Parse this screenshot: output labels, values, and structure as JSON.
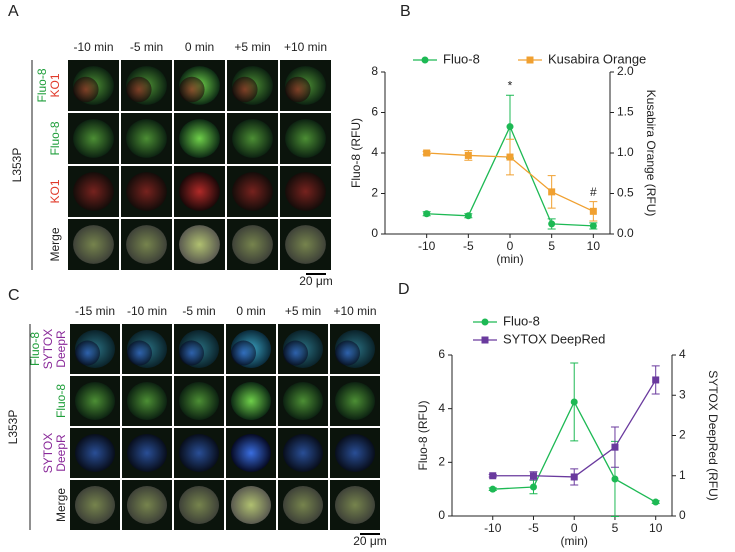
{
  "image_panels": [
    {
      "label": "A",
      "columns": [
        "-10 min",
        "-5 min",
        "0 min",
        "+5 min",
        "+10 min"
      ],
      "rows": [
        [
          {
            "text": "Fluo-8",
            "color": "#1e9e3a"
          },
          {
            "text": "KO1",
            "color": "#e03a2a"
          }
        ],
        [
          {
            "text": "Fluo-8",
            "color": "#1e9e3a"
          }
        ],
        [
          {
            "text": "KO1",
            "color": "#e03a2a"
          }
        ],
        [
          {
            "text": "Merge",
            "color": "#222222"
          }
        ]
      ],
      "group": "L353P",
      "scale_bar": "20 μm"
    },
    {
      "label": "C",
      "columns": [
        "-15 min",
        "-10 min",
        "-5 min",
        "0 min",
        "+5 min",
        "+10 min"
      ],
      "rows": [
        [
          {
            "text": "Fluo-8",
            "color": "#1e9e3a"
          },
          {
            "text": "SYTOX",
            "color": "#8a2a9a"
          },
          {
            "text": "DeepR",
            "color": "#8a2a9a"
          }
        ],
        [
          {
            "text": "Fluo-8",
            "color": "#1e9e3a"
          }
        ],
        [
          {
            "text": "SYTOX",
            "color": "#8a2a9a"
          },
          {
            "text": "DeepR",
            "color": "#8a2a9a"
          }
        ],
        [
          {
            "text": "Merge",
            "color": "#222222"
          }
        ]
      ],
      "group": "L353P",
      "scale_bar": "20 μm"
    }
  ],
  "chart_data": [
    {
      "type": "line",
      "panel_label": "B",
      "x": [
        -10,
        -5,
        0,
        5,
        10
      ],
      "xlim": [
        -15,
        12
      ],
      "xticks": [
        -10,
        -5,
        0,
        5,
        10
      ],
      "xlabel": "(min)",
      "ylabel": "Fluo-8 (RFU)",
      "y2label": "Kusabira Orange (RFU)",
      "ylim": [
        0,
        8
      ],
      "yticks": [
        0,
        2,
        4,
        6,
        8
      ],
      "y2lim": [
        0,
        2
      ],
      "y2ticks": [
        {
          "value": 0,
          "label": "0.0"
        },
        {
          "value": 0.5,
          "label": "0.5"
        },
        {
          "value": 1,
          "label": "1.0"
        },
        {
          "value": 1.5,
          "label": "1.5"
        },
        {
          "value": 2,
          "label": "2.0"
        }
      ],
      "legend": "top",
      "series": [
        {
          "name": "Fluo-8",
          "color": "#1db954",
          "marker": "circle",
          "values": [
            1.0,
            0.9,
            5.3,
            0.5,
            0.4
          ],
          "errors": [
            0.1,
            0.1,
            1.55,
            0.25,
            0.15
          ]
        },
        {
          "name": "Kusabira Orange",
          "color": "#f0a030",
          "marker": "square",
          "axis": "y2",
          "values": [
            1.0,
            0.97,
            0.95,
            0.52,
            0.28
          ],
          "errors": [
            0.02,
            0.06,
            0.22,
            0.2,
            0.12
          ]
        }
      ],
      "annotations": [
        {
          "text": "*",
          "x": 0
        },
        {
          "text": "#",
          "x": 10
        }
      ]
    },
    {
      "type": "line",
      "panel_label": "D",
      "x": [
        -10,
        -5,
        0,
        5,
        10
      ],
      "xlim": [
        -15,
        12
      ],
      "xticks": [
        -10,
        -5,
        0,
        5,
        10
      ],
      "xlabel": "(min)",
      "ylabel": "Fluo-8 (RFU)",
      "y2label": "SYTOX DeepRed (RFU)",
      "ylim": [
        0,
        6
      ],
      "yticks": [
        0,
        2,
        4,
        6
      ],
      "y2lim": [
        0,
        4
      ],
      "y2ticks": [
        0,
        1,
        2,
        3,
        4
      ],
      "legend": "top-left",
      "series": [
        {
          "name": "Fluo-8",
          "color": "#1db954",
          "marker": "circle",
          "values": [
            1.0,
            1.08,
            4.25,
            1.38,
            0.52
          ],
          "errors": [
            0.05,
            0.25,
            1.45,
            1.4,
            0.05
          ]
        },
        {
          "name": "SYTOX DeepRed",
          "color": "#6a3a9e",
          "marker": "square",
          "axis": "y2",
          "values": [
            1.0,
            1.0,
            0.97,
            1.71,
            3.38
          ],
          "errors": [
            0.03,
            0.1,
            0.2,
            0.5,
            0.35
          ]
        }
      ]
    }
  ]
}
